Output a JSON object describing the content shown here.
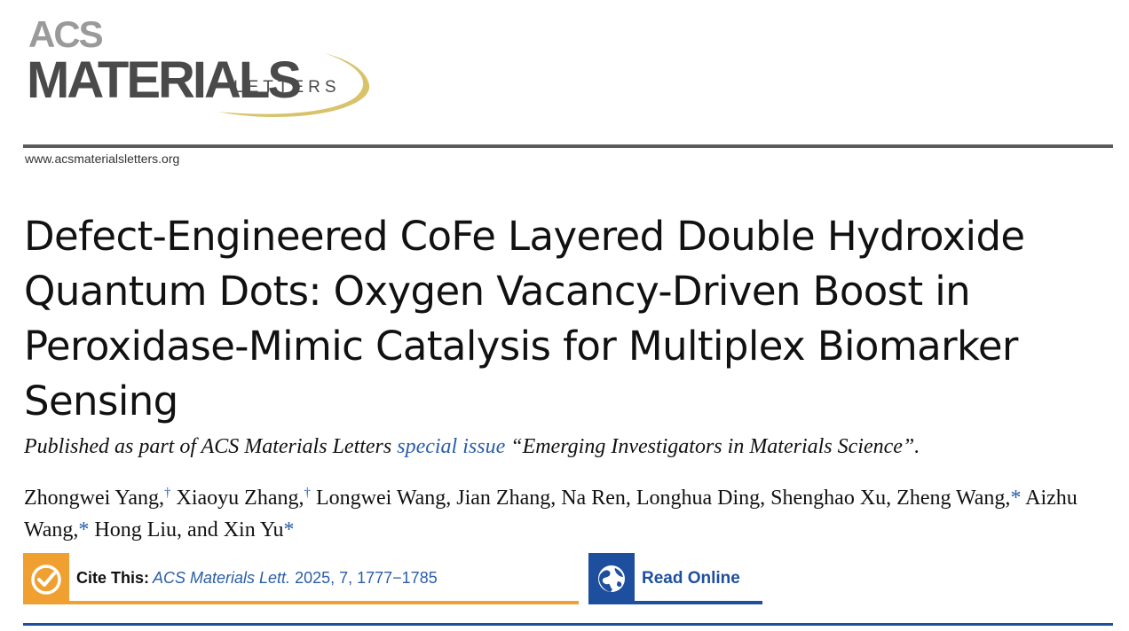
{
  "journal": {
    "logo_acs": "ACS",
    "logo_materials": "MATERIALS",
    "logo_letters": "LETTERS",
    "website": "www.acsmaterialsletters.org",
    "colors": {
      "logo_gray": "#4a4a4a",
      "logo_light_gray": "#9a9a9a",
      "swoosh": "#d8c36a",
      "top_rule": "#5a5a5a"
    }
  },
  "article": {
    "title": "Defect-Engineered CoFe Layered Double Hydroxide Quantum Dots: Oxygen Vacancy-Driven Boost in Peroxidase-Mimic Catalysis for Multiplex Biomarker Sensing",
    "published_prefix": "Published as part of ACS Materials Letters ",
    "published_link": "special issue",
    "published_suffix": " “Emerging Investigators in Materials Science”.",
    "authors": [
      {
        "name": "Zhongwei Yang,",
        "mark": "†"
      },
      {
        "name": "Xiaoyu Zhang,",
        "mark": "†"
      },
      {
        "name": "Longwei Wang, Jian Zhang, Na Ren, Longhua Ding, Shenghao Xu,",
        "mark": ""
      },
      {
        "name": "Zheng Wang,",
        "mark": "*"
      },
      {
        "name": "Aizhu Wang,",
        "mark": "*"
      },
      {
        "name": "Hong Liu, and Xin Yu",
        "mark": "*"
      }
    ]
  },
  "actions": {
    "cite_label": "Cite This:",
    "cite_journal": "ACS Materials Lett.",
    "cite_details": " 2025, 7, 1777−1785",
    "cite_icon": "checkmark-icon",
    "cite_color": "#f0a030",
    "read_label": "Read Online",
    "read_icon": "globe-icon",
    "read_color": "#1e4f9e"
  }
}
